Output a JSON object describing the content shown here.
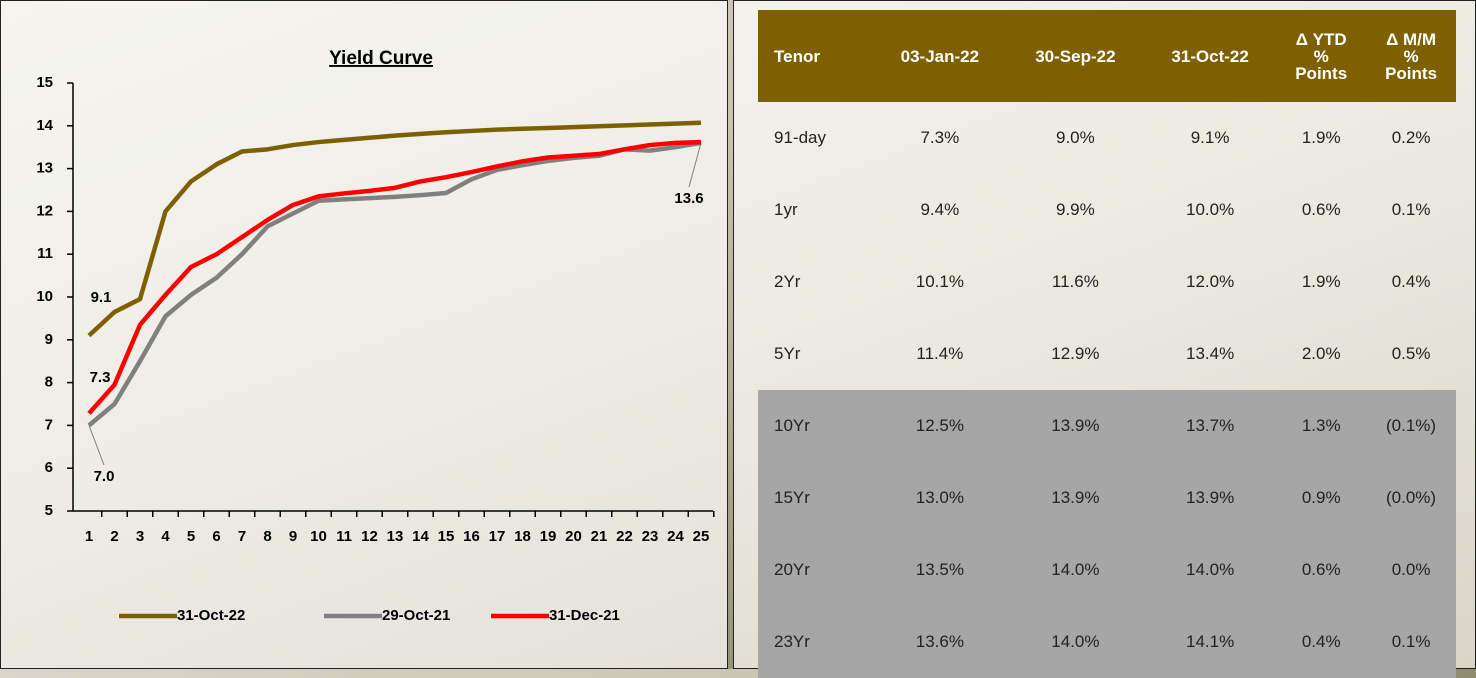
{
  "chart_data": {
    "type": "line",
    "title": "Yield Curve",
    "categories": [
      1,
      2,
      3,
      4,
      5,
      6,
      7,
      8,
      9,
      10,
      11,
      12,
      13,
      14,
      15,
      16,
      17,
      18,
      19,
      20,
      21,
      22,
      23,
      24,
      25
    ],
    "ylim": [
      5,
      15
    ],
    "yticks": [
      5,
      6,
      7,
      8,
      9,
      10,
      11,
      12,
      13,
      14,
      15
    ],
    "series": [
      {
        "name": "31-Oct-22",
        "color": "#7f6000",
        "values": [
          9.1,
          9.65,
          9.95,
          12.0,
          12.7,
          13.1,
          13.4,
          13.45,
          13.55,
          13.62,
          13.67,
          13.72,
          13.77,
          13.81,
          13.85,
          13.88,
          13.91,
          13.93,
          13.95,
          13.97,
          13.99,
          14.01,
          14.03,
          14.05,
          14.07
        ],
        "value_labels": [
          "9.1",
          null,
          null,
          null,
          null,
          null,
          null,
          null,
          null,
          null,
          null,
          null,
          null,
          null,
          null,
          null,
          null,
          null,
          null,
          null,
          null,
          null,
          null,
          null,
          null
        ]
      },
      {
        "name": "29-Oct-21",
        "color": "#808080",
        "values": [
          7.0,
          7.5,
          8.5,
          9.55,
          10.05,
          10.45,
          11.0,
          11.65,
          11.95,
          12.25,
          12.28,
          12.31,
          12.34,
          12.38,
          12.43,
          12.75,
          12.97,
          13.08,
          13.18,
          13.25,
          13.3,
          13.45,
          13.42,
          13.5,
          13.6
        ],
        "value_labels": [
          "7.0",
          null,
          null,
          null,
          null,
          null,
          null,
          null,
          null,
          null,
          null,
          null,
          null,
          null,
          null,
          null,
          null,
          null,
          null,
          null,
          null,
          null,
          null,
          null,
          "13.6"
        ]
      },
      {
        "name": "31-Dec-21",
        "color": "#ff0000",
        "values": [
          7.28,
          7.95,
          9.35,
          10.05,
          10.7,
          11.0,
          11.4,
          11.8,
          12.15,
          12.35,
          12.42,
          12.48,
          12.55,
          12.7,
          12.8,
          12.92,
          13.05,
          13.17,
          13.26,
          13.3,
          13.34,
          13.45,
          13.55,
          13.6,
          13.62
        ],
        "value_labels": [
          "7.3",
          null,
          null,
          null,
          null,
          null,
          null,
          null,
          null,
          null,
          null,
          null,
          null,
          null,
          null,
          null,
          null,
          null,
          null,
          null,
          null,
          null,
          null,
          null,
          null
        ]
      }
    ]
  },
  "table": {
    "header": [
      "Tenor",
      "03-Jan-22",
      "30-Sep-22",
      "31-Oct-22",
      "Δ YTD\n%\nPoints",
      "Δ M/M\n%\nPoints"
    ],
    "rows": [
      [
        "91-day",
        "7.3%",
        "9.0%",
        "9.1%",
        "1.9%",
        "0.2%"
      ],
      [
        "1yr",
        "9.4%",
        "9.9%",
        "10.0%",
        "0.6%",
        "0.1%"
      ],
      [
        "2Yr",
        "10.1%",
        "11.6%",
        "12.0%",
        "1.9%",
        "0.4%"
      ],
      [
        "5Yr",
        "11.4%",
        "12.9%",
        "13.4%",
        "2.0%",
        "0.5%"
      ],
      [
        "10Yr",
        "12.5%",
        "13.9%",
        "13.7%",
        "1.3%",
        "(0.1%)"
      ],
      [
        "15Yr",
        "13.0%",
        "13.9%",
        "13.9%",
        "0.9%",
        "(0.0%)"
      ],
      [
        "20Yr",
        "13.5%",
        "14.0%",
        "14.0%",
        "0.6%",
        "0.0%"
      ],
      [
        "23Yr",
        "13.6%",
        "14.0%",
        "14.1%",
        "0.4%",
        "0.1%"
      ]
    ]
  }
}
